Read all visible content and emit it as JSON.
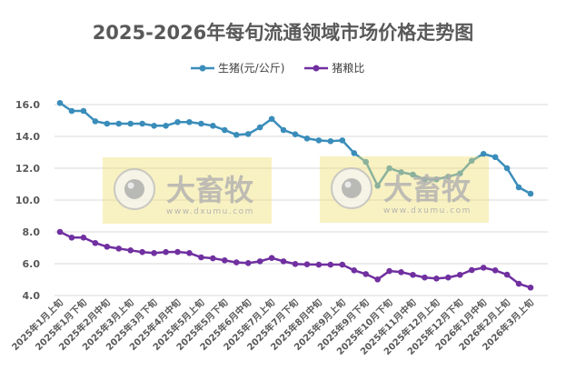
{
  "chart_data": {
    "type": "line",
    "title": "2025-2026年每旬流通领域市场价格走势图",
    "xlabel": "",
    "ylabel": "",
    "ylim": [
      4.0,
      16.0
    ],
    "yticks": [
      "4.0",
      "6.0",
      "8.0",
      "10.0",
      "12.0",
      "14.0",
      "16.0"
    ],
    "grid": true,
    "legend_position": "top",
    "x_tick_labels": [
      "2025年1月上旬",
      "2025年1月下旬",
      "2025年2月中旬",
      "2025年3月上旬",
      "2025年3月下旬",
      "2025年4月中旬",
      "2025年5月上旬",
      "2025年5月下旬",
      "2025年6月中旬",
      "2025年7月上旬",
      "2025年7月下旬",
      "2025年8月中旬",
      "2025年9月上旬",
      "2025年9月下旬",
      "2025年10月下旬",
      "2025年11月中旬",
      "2025年12月上旬",
      "2025年12月下旬",
      "2026年1月中旬",
      "2026年2月上旬",
      "2026年3月上旬"
    ],
    "series": [
      {
        "name": "生猪(元/公斤)",
        "color": "#3a8dba",
        "values": [
          16.1,
          15.6,
          15.6,
          14.95,
          14.8,
          14.8,
          14.8,
          14.8,
          14.67,
          14.67,
          14.9,
          14.9,
          14.8,
          14.67,
          14.4,
          14.1,
          14.15,
          14.57,
          15.1,
          14.4,
          14.13,
          13.87,
          13.75,
          13.7,
          13.75,
          12.95,
          12.4,
          10.9,
          12.0,
          11.75,
          11.6,
          11.3,
          11.3,
          11.47,
          11.67,
          12.47,
          12.9,
          12.7,
          12.0,
          10.8,
          10.4
        ]
      },
      {
        "name": "猪粮比",
        "color": "#7030a0",
        "values": [
          8.0,
          7.64,
          7.64,
          7.3,
          7.07,
          6.95,
          6.84,
          6.73,
          6.67,
          6.73,
          6.74,
          6.67,
          6.4,
          6.34,
          6.21,
          6.08,
          6.04,
          6.15,
          6.36,
          6.15,
          5.98,
          5.96,
          5.94,
          5.94,
          5.94,
          5.58,
          5.35,
          5.01,
          5.54,
          5.47,
          5.3,
          5.13,
          5.07,
          5.13,
          5.3,
          5.6,
          5.75,
          5.58,
          5.31,
          4.74,
          4.5
        ]
      }
    ]
  },
  "watermark": {
    "brand": "大畜牧",
    "site": "www.dxumu.com"
  }
}
